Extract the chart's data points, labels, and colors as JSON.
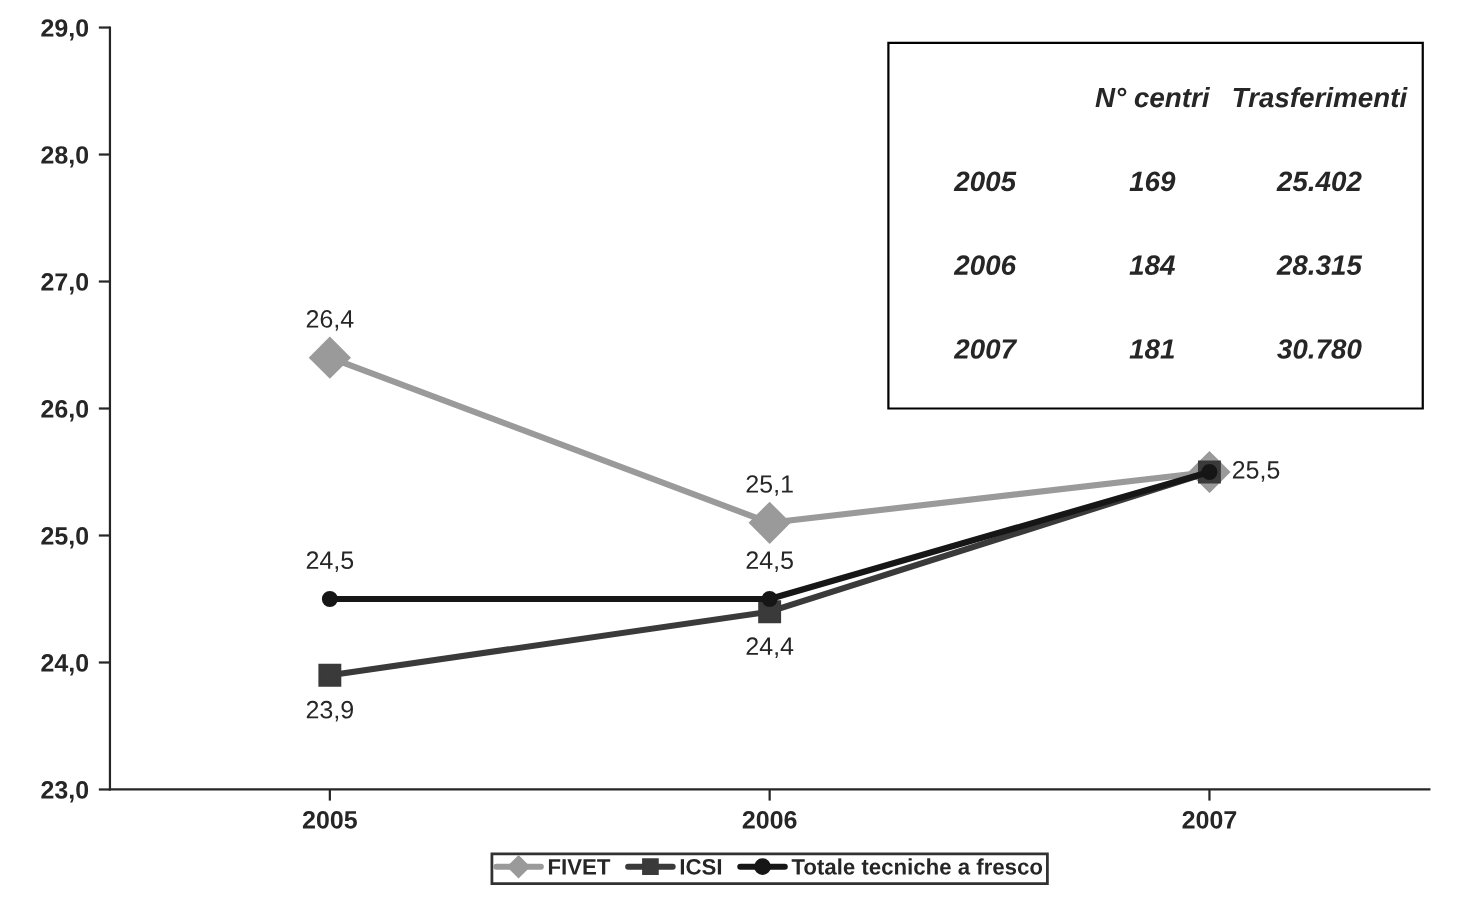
{
  "chart_data": {
    "type": "line",
    "categories": [
      "2005",
      "2006",
      "2007"
    ],
    "series": [
      {
        "name": "FIVET",
        "color": "#9a9a9a",
        "marker": "diamond",
        "values": [
          26.4,
          25.1,
          25.5
        ],
        "value_labels": [
          "26,4",
          "25,1",
          "25,5"
        ]
      },
      {
        "name": "ICSI",
        "color": "#3a3a3a",
        "marker": "square",
        "values": [
          23.9,
          24.4,
          25.5
        ],
        "value_labels": [
          "23,9",
          "24,4",
          null
        ]
      },
      {
        "name": "Totale tecniche a fresco",
        "color": "#161616",
        "marker": "circle",
        "values": [
          24.5,
          24.5,
          25.5
        ],
        "value_labels": [
          "24,5",
          "24,5",
          null
        ]
      }
    ],
    "ylim": [
      23,
      29
    ],
    "yticks": [
      {
        "value": 23,
        "label": "23,0"
      },
      {
        "value": 24,
        "label": "24,0"
      },
      {
        "value": 25,
        "label": "25,0"
      },
      {
        "value": 26,
        "label": "26,0"
      },
      {
        "value": 27,
        "label": "27,0"
      },
      {
        "value": 28,
        "label": "28,0"
      },
      {
        "value": 29,
        "label": "29,0"
      }
    ],
    "annotations": [
      "N° centri",
      "Trasferimenti",
      "2005",
      "169",
      "25.402",
      "2006",
      "184",
      "28.315",
      "2007",
      "181",
      "30.780"
    ],
    "grid": false,
    "legend": "bottom",
    "line_style": "solid"
  }
}
